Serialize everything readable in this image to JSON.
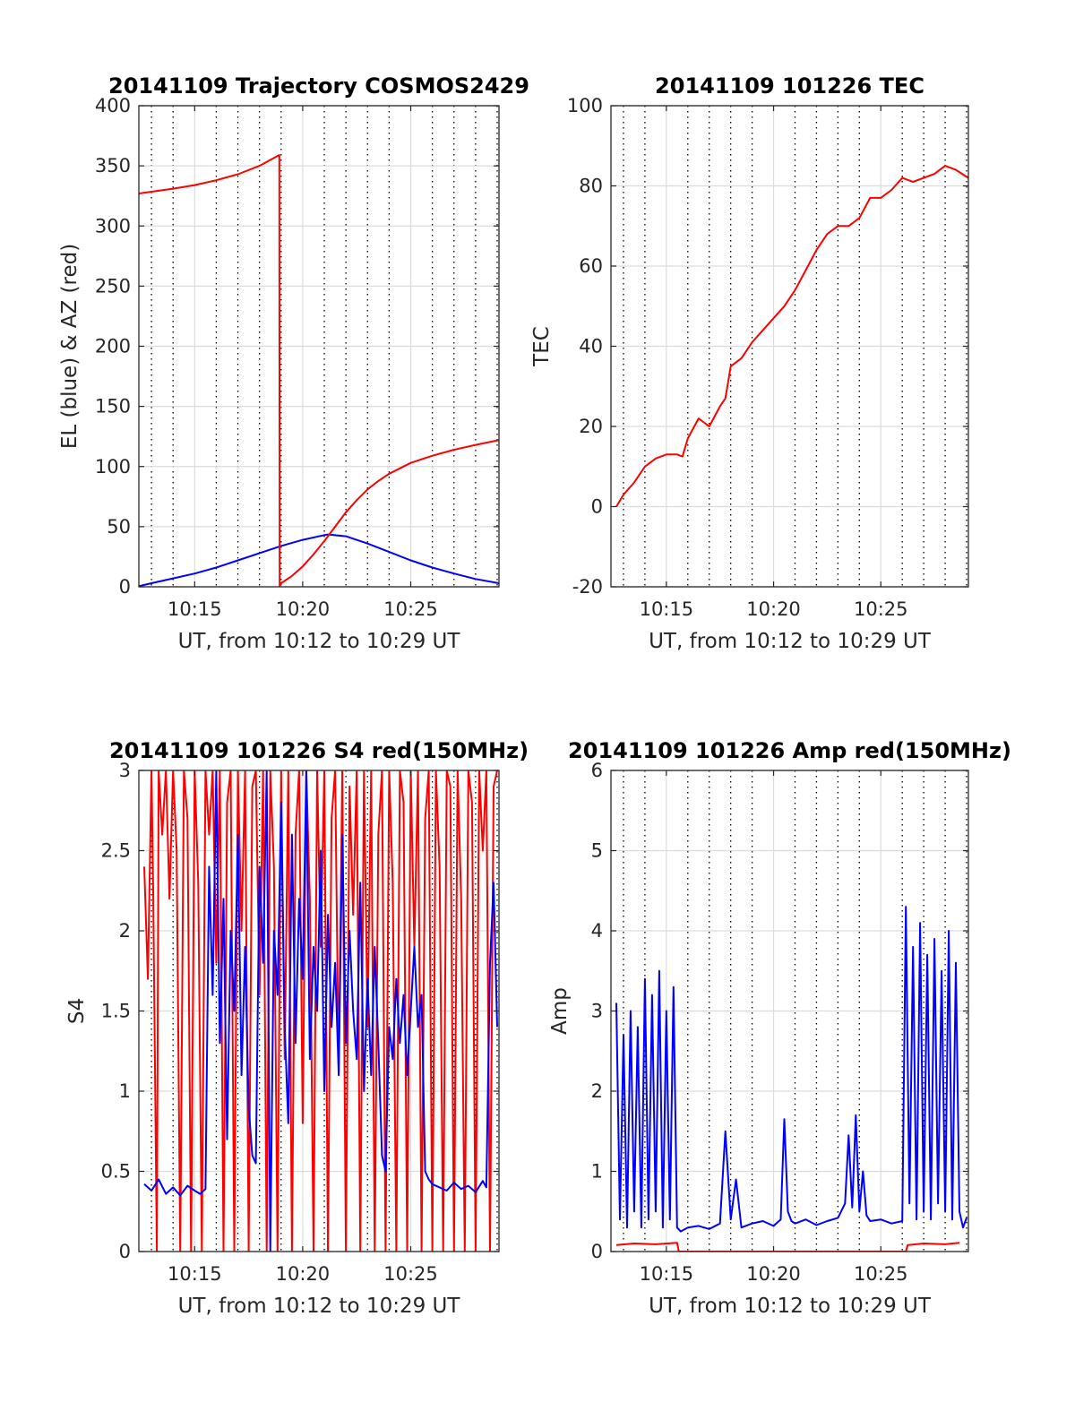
{
  "chart_data": [
    {
      "id": "trajectory",
      "type": "line",
      "title": "20141109 Trajectory COSMOS2429",
      "xlabel": "UT, from 10:12 to 10:29 UT",
      "ylabel": "EL (blue) & AZ (red)",
      "xlim": [
        "10:12:25",
        "10:29:05"
      ],
      "ylim": [
        0,
        400
      ],
      "yticks": [
        0,
        50,
        100,
        150,
        200,
        250,
        300,
        350,
        400
      ],
      "xticks": [
        "10:15",
        "10:20",
        "10:25"
      ],
      "grid": true,
      "series": [
        {
          "color": "#0000ff",
          "x": [
            "10:12:25",
            "10:13:00",
            "10:14:00",
            "10:15:00",
            "10:16:00",
            "10:17:00",
            "10:18:00",
            "10:19:00",
            "10:20:00",
            "10:21:00",
            "10:21:10",
            "10:22:00",
            "10:23:00",
            "10:24:00",
            "10:25:00",
            "10:26:00",
            "10:27:00",
            "10:28:00",
            "10:29:05"
          ],
          "y": [
            0.5,
            3,
            7,
            11,
            16,
            22,
            28,
            34,
            39,
            43,
            43.5,
            42,
            36,
            29,
            22,
            16,
            11,
            6.5,
            3
          ]
        },
        {
          "color": "#ff0000",
          "x": [
            "10:12:25",
            "10:13:00",
            "10:14:00",
            "10:15:00",
            "10:16:00",
            "10:17:00",
            "10:18:00",
            "10:18:55",
            "10:18:56",
            "10:19:00",
            "10:19:30",
            "10:20:00",
            "10:20:30",
            "10:21:00",
            "10:21:30",
            "10:22:00",
            "10:22:30",
            "10:23:00",
            "10:23:30",
            "10:24:00",
            "10:25:00",
            "10:26:00",
            "10:27:00",
            "10:28:00",
            "10:29:05"
          ],
          "y": [
            327,
            328.5,
            331,
            334,
            338,
            343,
            350,
            359,
            0.5,
            3,
            9,
            17,
            27,
            38,
            50,
            62,
            72,
            81,
            88,
            94,
            103,
            109,
            114,
            118,
            122
          ]
        }
      ]
    },
    {
      "id": "tec",
      "type": "line",
      "title": "20141109 101226 TEC",
      "xlabel": "UT, from 10:12 to 10:29 UT",
      "ylabel": "TEC",
      "xlim": [
        "10:12:25",
        "10:29:05"
      ],
      "ylim": [
        -20,
        100
      ],
      "yticks": [
        -20,
        0,
        20,
        40,
        60,
        80,
        100
      ],
      "xticks": [
        "10:15",
        "10:20",
        "10:25"
      ],
      "grid": true,
      "series": [
        {
          "color": "#ff0000",
          "x": [
            "10:12:40",
            "10:13:00",
            "10:13:30",
            "10:14:00",
            "10:14:30",
            "10:15:00",
            "10:15:30",
            "10:15:45",
            "10:16:00",
            "10:16:30",
            "10:17:00",
            "10:17:30",
            "10:17:45",
            "10:18:00",
            "10:18:30",
            "10:19:00",
            "10:19:30",
            "10:20:00",
            "10:20:30",
            "10:21:00",
            "10:21:30",
            "10:22:00",
            "10:22:30",
            "10:23:00",
            "10:23:30",
            "10:24:00",
            "10:24:30",
            "10:25:00",
            "10:25:30",
            "10:26:00",
            "10:26:30",
            "10:27:00",
            "10:27:30",
            "10:28:00",
            "10:28:30",
            "10:29:05"
          ],
          "y": [
            0,
            3,
            6,
            10,
            12,
            13,
            13,
            12.5,
            17,
            22,
            20,
            25,
            27,
            35,
            37,
            41,
            44,
            47,
            50,
            54,
            59,
            64,
            68,
            70,
            70,
            72,
            77,
            77,
            79,
            82,
            81,
            82,
            83,
            85,
            84,
            82
          ]
        }
      ]
    },
    {
      "id": "s4",
      "type": "line",
      "title": "20141109 101226 S4 red(150MHz)",
      "xlabel": "UT, from 10:12 to 10:29 UT",
      "ylabel": "S4",
      "xlim": [
        "10:12:25",
        "10:29:05"
      ],
      "ylim": [
        0,
        3
      ],
      "yticks": [
        0,
        0.5,
        1,
        1.5,
        2,
        2.5,
        3
      ],
      "xticks": [
        "10:15",
        "10:20",
        "10:25"
      ],
      "grid": true,
      "series": [
        {
          "color": "#ff0000",
          "x": [
            "10:12:40",
            "10:12:50",
            "10:13:00",
            "10:13:05",
            "10:13:15",
            "10:13:20",
            "10:13:30",
            "10:13:40",
            "10:13:50",
            "10:14:00",
            "10:14:10",
            "10:14:20",
            "10:14:30",
            "10:14:40",
            "10:14:50",
            "10:15:00",
            "10:15:10",
            "10:15:20",
            "10:15:30",
            "10:15:40",
            "10:15:50",
            "10:16:00",
            "10:16:10",
            "10:16:20",
            "10:16:30",
            "10:16:40",
            "10:16:50",
            "10:17:00",
            "10:17:10",
            "10:17:20",
            "10:17:30",
            "10:17:40",
            "10:17:50",
            "10:18:00",
            "10:18:10",
            "10:18:20",
            "10:18:30",
            "10:18:40",
            "10:18:50",
            "10:19:00",
            "10:19:10",
            "10:19:20",
            "10:19:30",
            "10:19:40",
            "10:19:50",
            "10:20:00",
            "10:20:10",
            "10:20:20",
            "10:20:30",
            "10:20:40",
            "10:20:50",
            "10:21:00",
            "10:21:10",
            "10:21:20",
            "10:21:30",
            "10:21:40",
            "10:21:50",
            "10:22:00",
            "10:22:10",
            "10:22:20",
            "10:22:30",
            "10:22:40",
            "10:22:50",
            "10:23:00",
            "10:23:10",
            "10:23:20",
            "10:23:30",
            "10:23:40",
            "10:23:50",
            "10:24:00",
            "10:24:10",
            "10:24:20",
            "10:24:30",
            "10:24:40",
            "10:24:50",
            "10:25:00",
            "10:25:10",
            "10:25:20",
            "10:25:30",
            "10:25:40",
            "10:25:50",
            "10:26:00",
            "10:26:10",
            "10:26:20",
            "10:26:30",
            "10:26:40",
            "10:26:50",
            "10:27:00",
            "10:27:10",
            "10:27:20",
            "10:27:30",
            "10:27:40",
            "10:27:50",
            "10:28:00",
            "10:28:10",
            "10:28:20",
            "10:28:30",
            "10:28:40",
            "10:28:50",
            "10:29:00"
          ],
          "y": [
            2.4,
            1.7,
            3.0,
            2.2,
            0.0,
            3.0,
            2.6,
            3.0,
            2.2,
            3.0,
            2.5,
            0.0,
            3.0,
            2.7,
            0.0,
            3.0,
            2.3,
            0.0,
            3.0,
            2.6,
            3.0,
            1.8,
            3.0,
            0.0,
            2.8,
            3.0,
            0.0,
            3.0,
            2.0,
            3.0,
            0.0,
            2.9,
            3.0,
            1.6,
            3.0,
            0.0,
            3.0,
            2.4,
            0.0,
            3.0,
            1.2,
            3.0,
            0.0,
            2.6,
            3.0,
            0.8,
            3.0,
            2.2,
            0.0,
            3.0,
            1.9,
            3.0,
            0.0,
            2.7,
            3.0,
            1.1,
            3.0,
            0.0,
            2.9,
            2.1,
            3.0,
            0.0,
            3.0,
            1.4,
            3.0,
            0.0,
            2.6,
            3.0,
            0.0,
            3.0,
            2.3,
            0.0,
            3.0,
            2.8,
            0.0,
            3.0,
            1.9,
            3.0,
            0.0,
            2.7,
            3.0,
            0.0,
            3.0,
            2.4,
            0.0,
            3.0,
            2.9,
            0.0,
            3.0,
            2.2,
            0.0,
            3.0,
            2.8,
            0.0,
            3.0,
            2.5,
            3.0,
            0.0,
            2.9,
            3.0
          ]
        },
        {
          "color": "#0000ff",
          "x": [
            "10:12:40",
            "10:13:00",
            "10:13:20",
            "10:13:40",
            "10:14:00",
            "10:14:20",
            "10:14:40",
            "10:15:00",
            "10:15:15",
            "10:15:30",
            "10:15:40",
            "10:15:50",
            "10:16:00",
            "10:16:10",
            "10:16:20",
            "10:16:30",
            "10:16:40",
            "10:16:50",
            "10:17:00",
            "10:17:10",
            "10:17:20",
            "10:17:30",
            "10:17:40",
            "10:17:50",
            "10:18:00",
            "10:18:10",
            "10:18:20",
            "10:18:30",
            "10:18:40",
            "10:18:50",
            "10:19:00",
            "10:19:10",
            "10:19:20",
            "10:19:30",
            "10:19:40",
            "10:19:50",
            "10:20:00",
            "10:20:10",
            "10:20:20",
            "10:20:30",
            "10:20:40",
            "10:20:50",
            "10:21:00",
            "10:21:10",
            "10:21:20",
            "10:21:30",
            "10:21:40",
            "10:21:50",
            "10:22:00",
            "10:22:10",
            "10:22:20",
            "10:22:30",
            "10:22:40",
            "10:22:50",
            "10:23:00",
            "10:23:10",
            "10:23:20",
            "10:23:30",
            "10:23:40",
            "10:23:50",
            "10:24:00",
            "10:24:10",
            "10:24:20",
            "10:24:30",
            "10:24:40",
            "10:24:50",
            "10:25:00",
            "10:25:10",
            "10:25:20",
            "10:25:30",
            "10:25:40",
            "10:25:50",
            "10:26:00",
            "10:26:20",
            "10:26:40",
            "10:27:00",
            "10:27:20",
            "10:27:40",
            "10:28:00",
            "10:28:20",
            "10:28:30",
            "10:28:40",
            "10:28:50",
            "10:29:00"
          ],
          "y": [
            0.42,
            0.38,
            0.45,
            0.36,
            0.4,
            0.35,
            0.41,
            0.38,
            0.36,
            0.39,
            2.4,
            1.6,
            3.0,
            1.3,
            2.2,
            0.7,
            2.0,
            1.5,
            2.6,
            1.1,
            1.9,
            0.9,
            0.6,
            0.55,
            2.4,
            1.8,
            3.0,
            0.0,
            2.0,
            1.6,
            2.8,
            1.4,
            0.8,
            2.6,
            1.3,
            2.2,
            1.7,
            3.0,
            1.2,
            1.9,
            1.5,
            2.5,
            1.0,
            2.1,
            1.4,
            1.8,
            1.1,
            2.6,
            1.3,
            2.0,
            1.5,
            1.2,
            2.3,
            1.0,
            1.7,
            1.1,
            1.9,
            1.3,
            0.6,
            0.5,
            1.4,
            1.2,
            1.7,
            1.3,
            1.6,
            1.1,
            1.5,
            1.9,
            1.4,
            1.6,
            0.5,
            0.45,
            0.42,
            0.4,
            0.38,
            0.43,
            0.39,
            0.41,
            0.37,
            0.44,
            0.4,
            1.8,
            2.3,
            1.4
          ]
        }
      ]
    },
    {
      "id": "amp",
      "type": "line",
      "title": "20141109 101226 Amp red(150MHz)",
      "xlabel": "UT, from 10:12 to 10:29 UT",
      "ylabel": "Amp",
      "xlim": [
        "10:12:25",
        "10:29:05"
      ],
      "ylim": [
        0,
        6
      ],
      "yticks": [
        0,
        1,
        2,
        3,
        4,
        5,
        6
      ],
      "xticks": [
        "10:15",
        "10:20",
        "10:25"
      ],
      "grid": true,
      "series": [
        {
          "color": "#ff0000",
          "x": [
            "10:12:40",
            "10:13:30",
            "10:14:30",
            "10:15:30",
            "10:15:35",
            "10:26:10",
            "10:26:15",
            "10:27:00",
            "10:28:00",
            "10:28:40"
          ],
          "y": [
            0.08,
            0.1,
            0.09,
            0.11,
            0.0,
            0.0,
            0.08,
            0.1,
            0.09,
            0.11
          ]
        },
        {
          "color": "#0000ff",
          "x": [
            "10:12:40",
            "10:12:50",
            "10:13:00",
            "10:13:10",
            "10:13:20",
            "10:13:30",
            "10:13:40",
            "10:13:50",
            "10:14:00",
            "10:14:10",
            "10:14:20",
            "10:14:30",
            "10:14:40",
            "10:14:50",
            "10:15:00",
            "10:15:10",
            "10:15:20",
            "10:15:30",
            "10:15:40",
            "10:16:00",
            "10:16:30",
            "10:17:00",
            "10:17:30",
            "10:17:45",
            "10:18:00",
            "10:18:15",
            "10:18:30",
            "10:19:00",
            "10:19:30",
            "10:20:00",
            "10:20:20",
            "10:20:30",
            "10:20:40",
            "10:20:50",
            "10:21:00",
            "10:21:30",
            "10:22:00",
            "10:22:30",
            "10:23:00",
            "10:23:20",
            "10:23:30",
            "10:23:40",
            "10:23:50",
            "10:24:00",
            "10:24:10",
            "10:24:20",
            "10:24:30",
            "10:25:00",
            "10:25:30",
            "10:26:00",
            "10:26:10",
            "10:26:20",
            "10:26:30",
            "10:26:40",
            "10:26:50",
            "10:27:00",
            "10:27:10",
            "10:27:20",
            "10:27:30",
            "10:27:40",
            "10:27:50",
            "10:28:00",
            "10:28:10",
            "10:28:20",
            "10:28:30",
            "10:28:40",
            "10:28:50",
            "10:29:00"
          ],
          "y": [
            3.1,
            0.4,
            2.7,
            0.3,
            3.0,
            0.5,
            2.8,
            0.3,
            3.4,
            0.4,
            3.2,
            0.5,
            3.5,
            0.3,
            3.0,
            0.4,
            3.3,
            0.3,
            0.25,
            0.3,
            0.32,
            0.28,
            0.35,
            1.5,
            0.4,
            0.9,
            0.3,
            0.35,
            0.38,
            0.32,
            0.4,
            1.65,
            0.5,
            0.38,
            0.35,
            0.4,
            0.33,
            0.38,
            0.42,
            0.6,
            1.45,
            0.55,
            1.7,
            0.5,
            1.0,
            0.45,
            0.38,
            0.4,
            0.35,
            0.38,
            4.3,
            0.6,
            3.8,
            0.4,
            4.1,
            0.5,
            3.7,
            0.4,
            3.9,
            0.6,
            3.5,
            0.5,
            4.0,
            0.4,
            3.6,
            0.5,
            0.3,
            0.42
          ]
        }
      ]
    }
  ]
}
